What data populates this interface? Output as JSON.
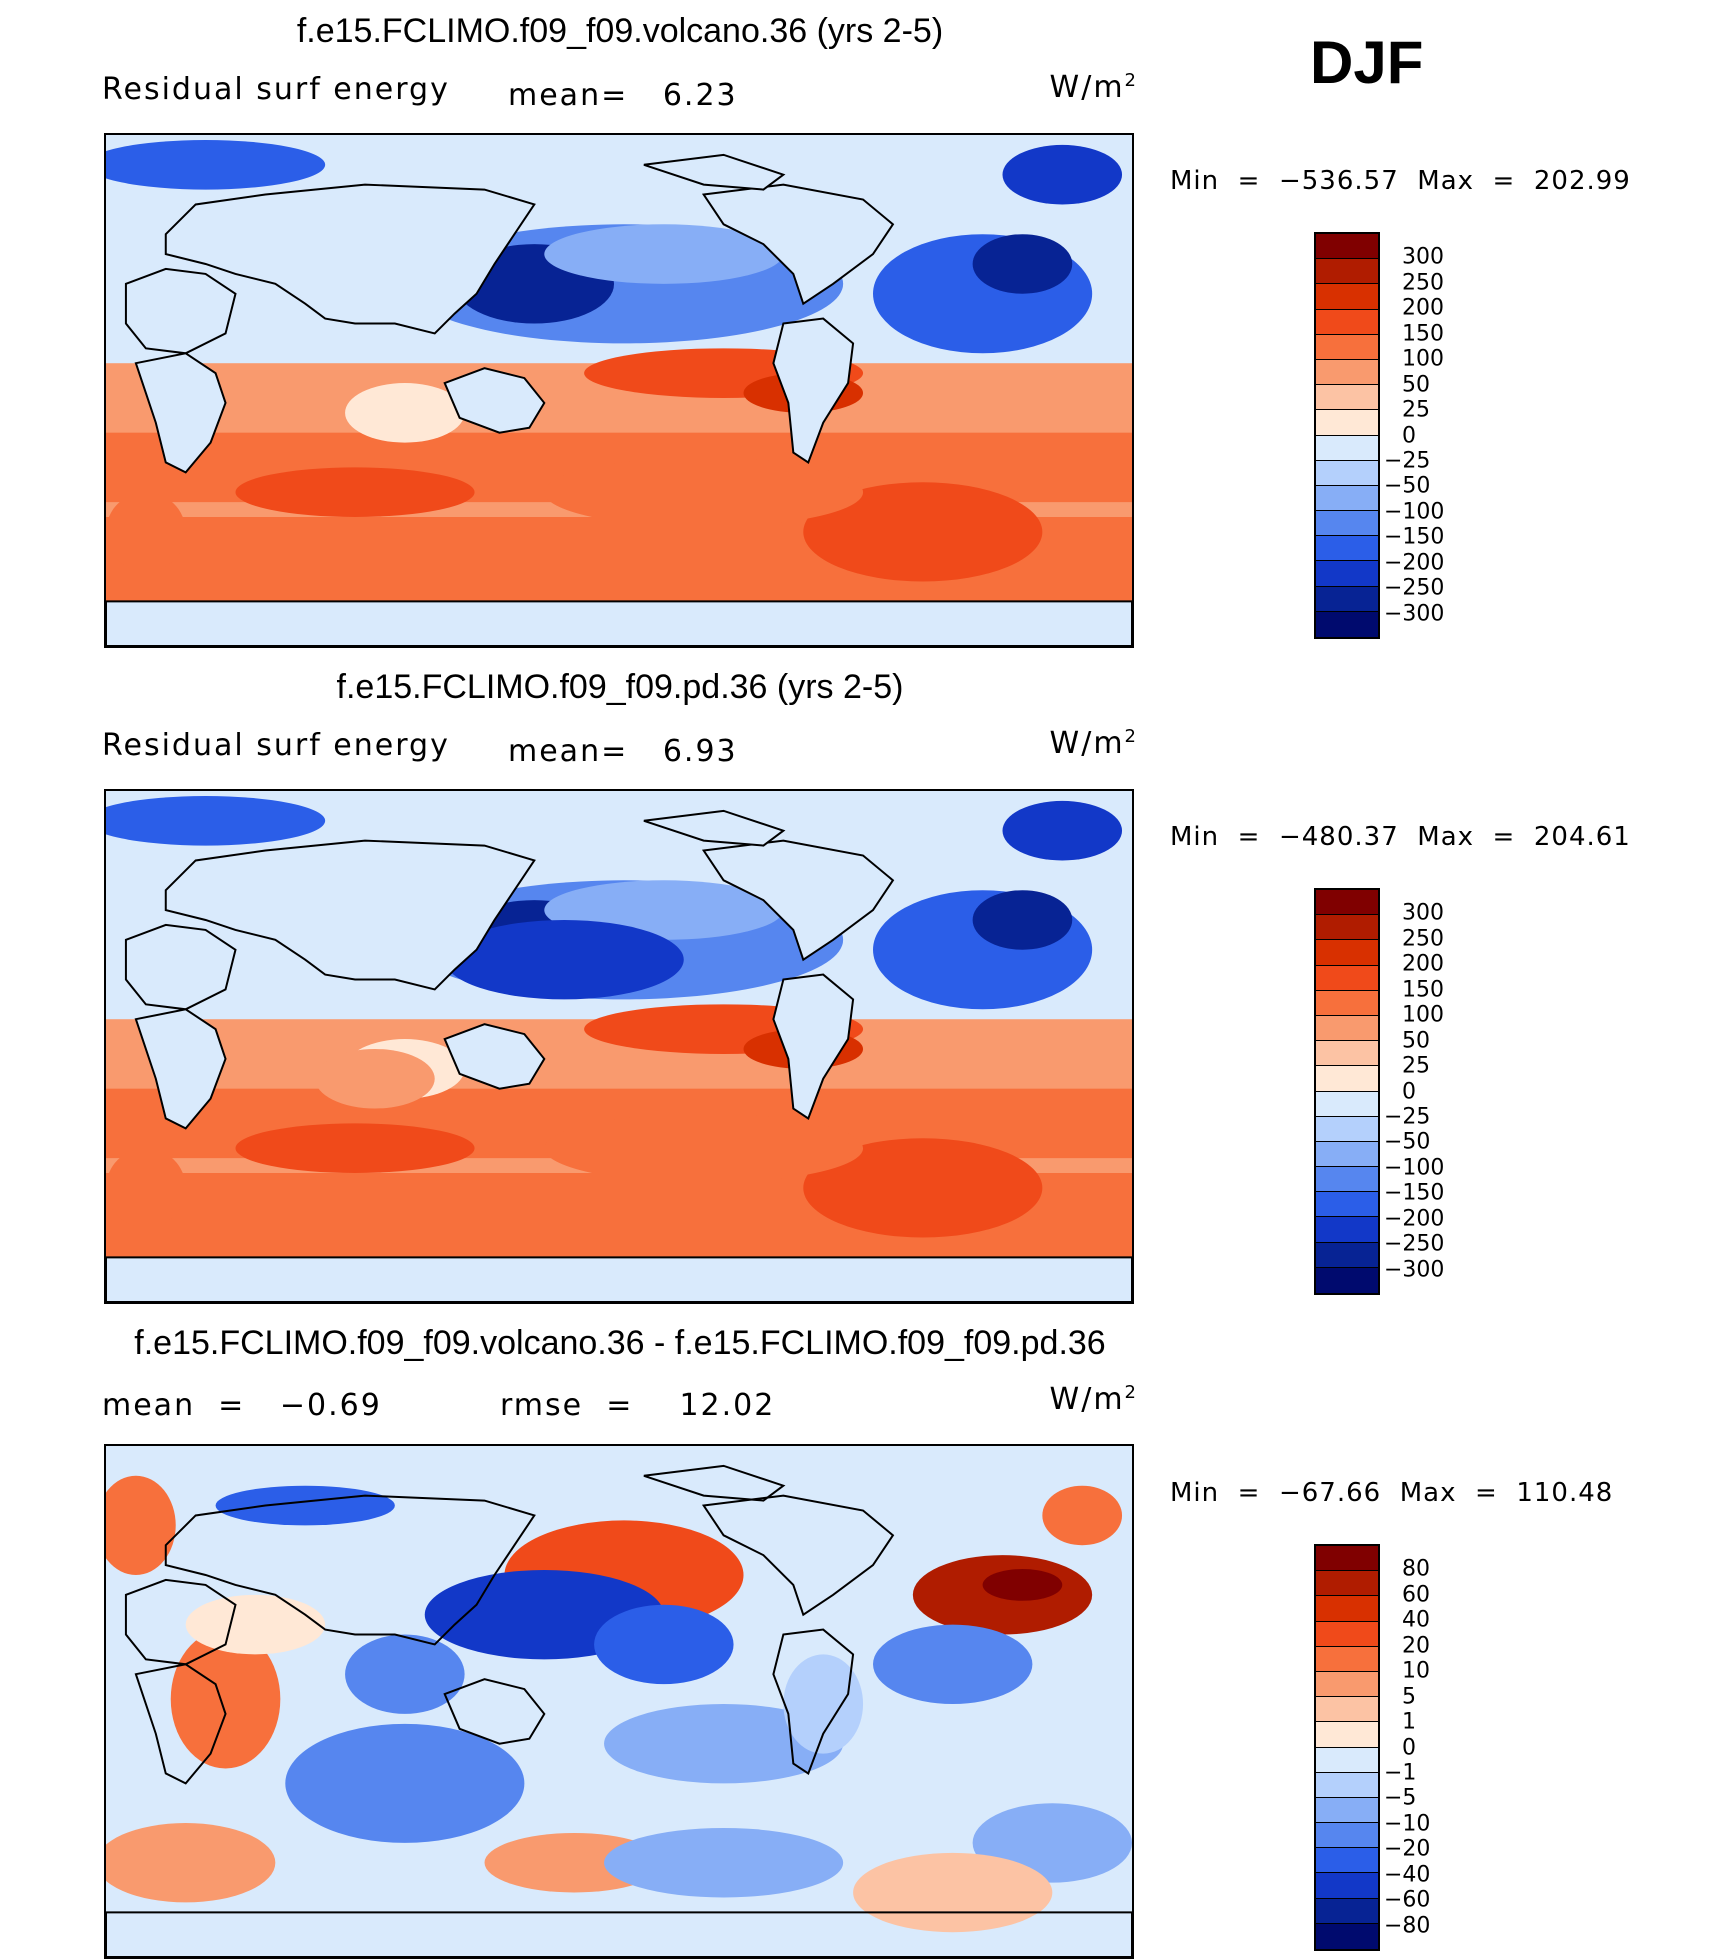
{
  "season": "DJF",
  "panels": [
    {
      "title": "f.e15.FCLIMO.f09_f09.volcano.36 (yrs 2-5)",
      "label_left": "Residual surf energy",
      "label_mid": "mean=   6.23",
      "units": "W/m",
      "units_sup": "2",
      "minmax": "Min  =  −536.57  Max  =  202.99",
      "colorbar": {
        "labels": [
          "300",
          "250",
          "200",
          "150",
          "100",
          "50",
          "25",
          "0",
          "−25",
          "−50",
          "−100",
          "−150",
          "−200",
          "−250",
          "−300"
        ],
        "colors": [
          "#800000",
          "#b01c00",
          "#d83000",
          "#f04a1a",
          "#f7703c",
          "#f99a6e",
          "#fcc3a4",
          "#ffe8d6",
          "#d9eafc",
          "#b4d0fc",
          "#87aef6",
          "#5686ef",
          "#2b5ee8",
          "#1238c8",
          "#072394",
          "#000a6e"
        ]
      }
    },
    {
      "title": "f.e15.FCLIMO.f09_f09.pd.36 (yrs 2-5)",
      "label_left": "Residual surf energy",
      "label_mid": "mean=   6.93",
      "units": "W/m",
      "units_sup": "2",
      "minmax": "Min  =  −480.37  Max  =  204.61",
      "colorbar": {
        "labels": [
          "300",
          "250",
          "200",
          "150",
          "100",
          "50",
          "25",
          "0",
          "−25",
          "−50",
          "−100",
          "−150",
          "−200",
          "−250",
          "−300"
        ],
        "colors": [
          "#800000",
          "#b01c00",
          "#d83000",
          "#f04a1a",
          "#f7703c",
          "#f99a6e",
          "#fcc3a4",
          "#ffe8d6",
          "#d9eafc",
          "#b4d0fc",
          "#87aef6",
          "#5686ef",
          "#2b5ee8",
          "#1238c8",
          "#072394",
          "#000a6e"
        ]
      }
    },
    {
      "title": "f.e15.FCLIMO.f09_f09.volcano.36 - f.e15.FCLIMO.f09_f09.pd.36",
      "label_left": "mean  =   −0.69",
      "label_mid": "rmse  =    12.02",
      "units": "W/m",
      "units_sup": "2",
      "minmax": "Min  =  −67.66  Max  =  110.48",
      "colorbar": {
        "labels": [
          "80",
          "60",
          "40",
          "20",
          "10",
          "5",
          "1",
          "0",
          "−1",
          "−5",
          "−10",
          "−20",
          "−40",
          "−60",
          "−80"
        ],
        "colors": [
          "#800000",
          "#b01c00",
          "#d83000",
          "#f04a1a",
          "#f7703c",
          "#f99a6e",
          "#fcc3a4",
          "#ffe8d6",
          "#d9eafc",
          "#b4d0fc",
          "#87aef6",
          "#5686ef",
          "#2b5ee8",
          "#1238c8",
          "#072394",
          "#000a6e"
        ]
      }
    }
  ],
  "chart_data": {
    "type": "heatmap",
    "title": "DJF",
    "variable": "Residual surf energy",
    "units": "W/m2",
    "maps": [
      {
        "case": "f.e15.FCLIMO.f09_f09.volcano.36 (yrs 2-5)",
        "mean": 6.23,
        "min": -536.57,
        "max": 202.99,
        "levels": [
          -300,
          -250,
          -200,
          -150,
          -100,
          -50,
          -25,
          0,
          25,
          50,
          100,
          150,
          200,
          250,
          300
        ]
      },
      {
        "case": "f.e15.FCLIMO.f09_f09.pd.36 (yrs 2-5)",
        "mean": 6.93,
        "min": -480.37,
        "max": 204.61,
        "levels": [
          -300,
          -250,
          -200,
          -150,
          -100,
          -50,
          -25,
          0,
          25,
          50,
          100,
          150,
          200,
          250,
          300
        ]
      },
      {
        "case": "f.e15.FCLIMO.f09_f09.volcano.36 - f.e15.FCLIMO.f09_f09.pd.36",
        "mean": -0.69,
        "rmse": 12.02,
        "min": -67.66,
        "max": 110.48,
        "levels": [
          -80,
          -60,
          -40,
          -20,
          -10,
          -5,
          -1,
          0,
          1,
          5,
          10,
          20,
          40,
          60,
          80
        ]
      }
    ]
  }
}
